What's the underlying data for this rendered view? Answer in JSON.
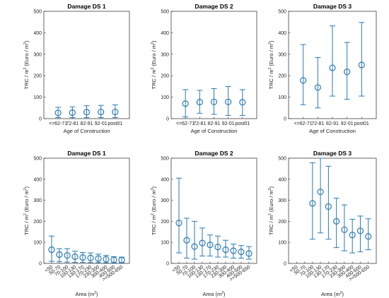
{
  "chart_data": [
    {
      "type": "scatter",
      "title": "Damage DS 1",
      "xlabel": "Age of Construction",
      "ylabel": "TRC / m² (Euro / m²)",
      "categories": [
        "<=62-71",
        "72-81",
        "82-91",
        "92-01",
        "post01"
      ],
      "values": [
        27,
        28,
        30,
        31,
        31
      ],
      "lower": [
        5,
        5,
        5,
        5,
        5
      ],
      "upper": [
        53,
        55,
        60,
        62,
        64
      ],
      "ylim": [
        0,
        500
      ],
      "yticks": [
        0,
        100,
        200,
        300,
        400,
        500
      ],
      "rotate_xticks": false,
      "grid": false,
      "color": "#2a7ab5"
    },
    {
      "type": "scatter",
      "title": "Damage DS 2",
      "xlabel": "Age of Construction",
      "ylabel": "TRC / m² (Euro / m²)",
      "categories": [
        "<=62-71",
        "72-81",
        "82-91",
        "92-01",
        "post01"
      ],
      "values": [
        70,
        77,
        78,
        78,
        76
      ],
      "lower": [
        8,
        25,
        20,
        15,
        15
      ],
      "upper": [
        135,
        132,
        140,
        150,
        135
      ],
      "ylim": [
        0,
        500
      ],
      "yticks": [
        0,
        100,
        200,
        300,
        400,
        500
      ],
      "rotate_xticks": false,
      "grid": false,
      "color": "#2a7ab5"
    },
    {
      "type": "scatter",
      "title": "Damage DS 3",
      "xlabel": "Age of Construction",
      "ylabel": "TRC / m² (Euro / m²)",
      "categories": [
        "<=62-71",
        "72-81",
        "82-91",
        "92-01",
        "post01"
      ],
      "values": [
        178,
        145,
        237,
        218,
        250
      ],
      "lower": [
        65,
        50,
        105,
        90,
        105
      ],
      "upper": [
        345,
        285,
        432,
        355,
        448
      ],
      "ylim": [
        0,
        500
      ],
      "yticks": [
        0,
        100,
        200,
        300,
        400,
        500
      ],
      "rotate_xticks": false,
      "grid": false,
      "color": "#2a7ab5"
    },
    {
      "type": "scatter",
      "title": "Damage DS 1",
      "xlabel": "Area (m²)",
      "ylabel": "TRC / m² (Euro / m²)",
      "categories": [
        "<50",
        "50-70",
        "70-100",
        "100-130",
        "130-170",
        "170-230",
        "230-300",
        "300-400",
        "400-500",
        ">=500-650"
      ],
      "values": [
        65,
        42,
        38,
        32,
        28,
        26,
        23,
        20,
        17,
        16
      ],
      "lower": [
        10,
        8,
        6,
        5,
        5,
        4,
        4,
        3,
        3,
        3
      ],
      "upper": [
        130,
        70,
        70,
        58,
        52,
        50,
        44,
        38,
        32,
        30
      ],
      "ylim": [
        0,
        500
      ],
      "yticks": [
        0,
        100,
        200,
        300,
        400,
        500
      ],
      "rotate_xticks": true,
      "grid": false,
      "color": "#2a7ab5"
    },
    {
      "type": "scatter",
      "title": "Damage DS 2",
      "xlabel": "Area (m²)",
      "ylabel": "TRC / m² (Euro / m²)",
      "categories": [
        "<50",
        "50-70",
        "70-100",
        "100-130",
        "130-170",
        "170-230",
        "230-300",
        "300-400",
        "400-500",
        ">=500-650"
      ],
      "values": [
        192,
        110,
        80,
        97,
        88,
        78,
        65,
        60,
        55,
        47
      ],
      "lower": [
        50,
        25,
        20,
        35,
        35,
        30,
        30,
        25,
        25,
        20
      ],
      "upper": [
        405,
        215,
        200,
        168,
        135,
        130,
        110,
        92,
        85,
        80
      ],
      "ylim": [
        0,
        500
      ],
      "yticks": [
        0,
        100,
        200,
        300,
        400,
        500
      ],
      "rotate_xticks": true,
      "grid": false,
      "color": "#2a7ab5"
    },
    {
      "type": "scatter",
      "title": "Damage DS 3",
      "xlabel": "Area (m²)",
      "ylabel": "TRC / m² (Euro / m²)",
      "categories": [
        "<50",
        "50-70",
        "70-100",
        "100-130",
        "130-170",
        "170-230",
        "230-300",
        "300-400",
        "400-500",
        ">=500-650"
      ],
      "values": [
        null,
        null,
        285,
        340,
        270,
        200,
        160,
        135,
        155,
        128
      ],
      "lower": [
        null,
        null,
        115,
        145,
        115,
        75,
        60,
        50,
        55,
        65
      ],
      "upper": [
        null,
        null,
        478,
        500,
        462,
        310,
        278,
        210,
        225,
        212
      ],
      "ylim": [
        0,
        500
      ],
      "yticks": [
        0,
        100,
        200,
        300,
        400,
        500
      ],
      "rotate_xticks": true,
      "grid": false,
      "color": "#2a7ab5"
    }
  ]
}
